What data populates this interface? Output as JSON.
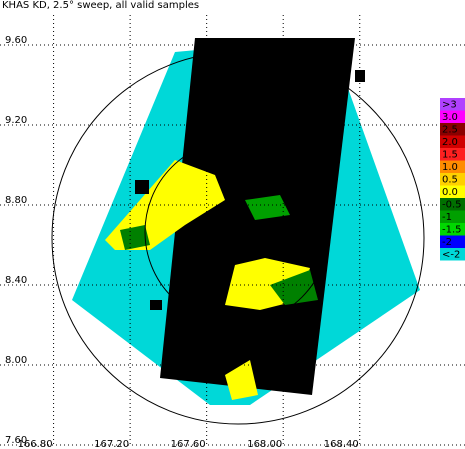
{
  "chart_data": {
    "type": "radar-map",
    "title": "KHAS KD, 2.5° sweep, all valid samples",
    "xlim": [
      166.52,
      168.95
    ],
    "xticks": [
      {
        "value": 166.8,
        "label": "166.80"
      },
      {
        "value": 167.2,
        "label": "167.20"
      },
      {
        "value": 167.6,
        "label": "167.60"
      },
      {
        "value": 168.0,
        "label": "168.00"
      },
      {
        "value": 168.4,
        "label": "168.40"
      }
    ],
    "ylim": [
      7.6,
      9.75
    ],
    "yticks": [
      {
        "value": 7.6,
        "label": "7.60"
      },
      {
        "value": 8.0,
        "label": "8.00"
      },
      {
        "value": 8.4,
        "label": "8.40"
      },
      {
        "value": 8.8,
        "label": "8.80"
      },
      {
        "value": 9.2,
        "label": "9.20"
      },
      {
        "value": 9.6,
        "label": "9.60"
      }
    ],
    "grid": true,
    "colorbar": [
      {
        "label": ">3",
        "color": "#b040ff"
      },
      {
        "label": "3.0",
        "color": "#ff00ff"
      },
      {
        "label": "2.5",
        "color": "#8b0000"
      },
      {
        "label": "2.0",
        "color": "#d00000"
      },
      {
        "label": "1.5",
        "color": "#ff2020"
      },
      {
        "label": "1.0",
        "color": "#ff8c00"
      },
      {
        "label": "0.5",
        "color": "#ffd000"
      },
      {
        "label": "0.0",
        "color": "#ffff00"
      },
      {
        "label": "-0.5",
        "color": "#007000"
      },
      {
        "label": "-1",
        "color": "#00a000"
      },
      {
        "label": "-1.5",
        "color": "#00d800"
      },
      {
        "label": "-2",
        "color": "#0000ff"
      },
      {
        "label": "<-2",
        "color": "#00d8d8"
      }
    ]
  }
}
